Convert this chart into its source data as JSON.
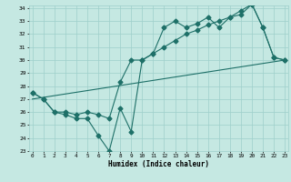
{
  "xlabel": "Humidex (Indice chaleur)",
  "bg_color": "#c5e8e2",
  "grid_color": "#9ecfca",
  "line_color": "#1e7068",
  "xlim": [
    0,
    23
  ],
  "ylim": [
    23,
    34
  ],
  "yticks": [
    23,
    24,
    25,
    26,
    27,
    28,
    29,
    30,
    31,
    32,
    33,
    34
  ],
  "xticks": [
    0,
    1,
    2,
    3,
    4,
    5,
    6,
    7,
    8,
    9,
    10,
    11,
    12,
    13,
    14,
    15,
    16,
    17,
    18,
    19,
    20,
    21,
    22,
    23
  ],
  "line1_x": [
    0,
    1,
    2,
    3,
    4,
    5,
    6,
    7,
    8,
    9,
    10,
    11,
    12,
    13,
    14,
    15,
    16,
    17,
    18,
    19,
    20,
    21,
    22,
    23
  ],
  "line1_y": [
    27.5,
    27.0,
    26.0,
    25.8,
    25.5,
    25.5,
    24.2,
    23.0,
    26.3,
    24.5,
    30.0,
    30.5,
    31.0,
    31.5,
    32.0,
    32.3,
    32.7,
    33.0,
    33.3,
    33.8,
    34.3,
    32.5,
    30.2,
    30.0
  ],
  "line2_x": [
    0,
    1,
    2,
    3,
    4,
    5,
    6,
    7,
    8,
    9,
    10,
    11,
    12,
    13,
    14,
    15,
    16,
    17,
    18,
    19,
    20,
    21,
    22,
    23
  ],
  "line2_y": [
    27.5,
    27.0,
    26.0,
    26.0,
    25.8,
    26.0,
    25.8,
    25.5,
    28.3,
    30.0,
    30.0,
    30.5,
    32.5,
    33.0,
    32.5,
    32.8,
    33.3,
    32.5,
    33.3,
    33.5,
    34.3,
    32.5,
    30.2,
    30.0
  ],
  "line3_x": [
    0,
    23
  ],
  "line3_y": [
    27.0,
    30.0
  ]
}
